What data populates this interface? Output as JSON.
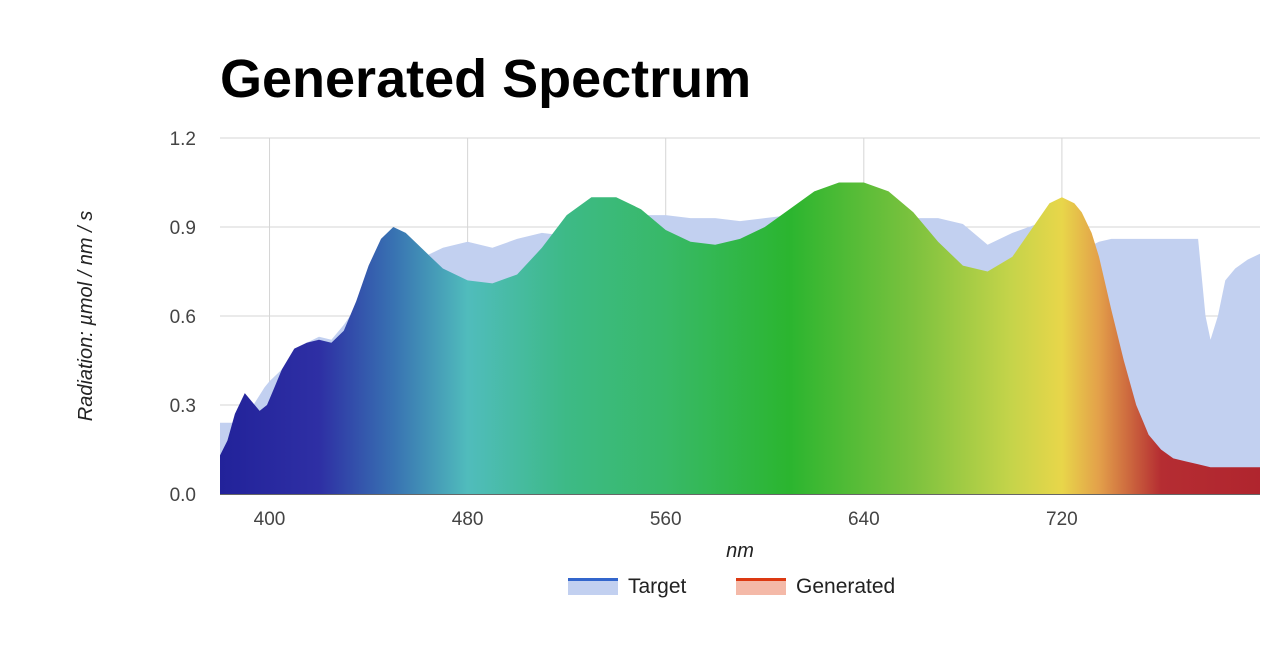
{
  "chart_data": {
    "type": "area",
    "title": "Generated Spectrum",
    "xlabel": "nm",
    "ylabel": "Radiation: µmol / nm / s",
    "xlim": [
      380,
      800
    ],
    "ylim": [
      0,
      1.2
    ],
    "x_ticks": [
      "400",
      "480",
      "560",
      "640",
      "720"
    ],
    "x_tick_values": [
      400,
      480,
      560,
      640,
      720
    ],
    "y_ticks": [
      "0.0",
      "0.3",
      "0.6",
      "0.9",
      "1.2"
    ],
    "y_tick_values": [
      0,
      0.3,
      0.6,
      0.9,
      1.2
    ],
    "grid": true,
    "legend_position": "bottom",
    "series": [
      {
        "name": "Target",
        "color": "#3366cc",
        "fill_color": "#c2d0f0",
        "x": [
          380,
          385,
          388,
          390,
          392,
          395,
          398,
          400,
          405,
          410,
          415,
          420,
          425,
          430,
          435,
          440,
          445,
          450,
          455,
          460,
          470,
          480,
          490,
          500,
          510,
          520,
          530,
          540,
          550,
          560,
          570,
          580,
          590,
          600,
          610,
          620,
          630,
          640,
          650,
          660,
          670,
          680,
          690,
          700,
          710,
          715,
          720,
          725,
          730,
          735,
          740,
          745,
          750,
          760,
          770,
          775,
          778,
          780,
          783,
          786,
          790,
          795,
          800
        ],
        "values": [
          0.24,
          0.24,
          0.24,
          0.25,
          0.28,
          0.32,
          0.36,
          0.38,
          0.42,
          0.48,
          0.51,
          0.53,
          0.52,
          0.57,
          0.63,
          0.7,
          0.74,
          0.76,
          0.78,
          0.79,
          0.83,
          0.85,
          0.83,
          0.86,
          0.88,
          0.87,
          0.91,
          0.93,
          0.94,
          0.94,
          0.93,
          0.93,
          0.92,
          0.93,
          0.94,
          0.93,
          0.93,
          0.93,
          0.92,
          0.93,
          0.93,
          0.91,
          0.84,
          0.88,
          0.91,
          0.82,
          0.77,
          0.79,
          0.83,
          0.85,
          0.86,
          0.86,
          0.86,
          0.86,
          0.86,
          0.86,
          0.6,
          0.52,
          0.6,
          0.72,
          0.76,
          0.79,
          0.81
        ]
      },
      {
        "name": "Generated",
        "color": "#dc3912",
        "fill_color": "#f4b9a8",
        "x": [
          380,
          383,
          386,
          390,
          393,
          396,
          399,
          402,
          405,
          410,
          415,
          420,
          425,
          430,
          435,
          440,
          445,
          450,
          455,
          460,
          465,
          470,
          480,
          490,
          500,
          510,
          520,
          530,
          540,
          550,
          560,
          570,
          580,
          590,
          600,
          610,
          620,
          630,
          640,
          650,
          660,
          670,
          680,
          690,
          700,
          710,
          715,
          720,
          725,
          728,
          732,
          735,
          740,
          745,
          750,
          755,
          760,
          765,
          770,
          775,
          780,
          785,
          790,
          795,
          800
        ],
        "values": [
          0.13,
          0.18,
          0.27,
          0.34,
          0.31,
          0.28,
          0.3,
          0.36,
          0.42,
          0.49,
          0.51,
          0.52,
          0.51,
          0.55,
          0.65,
          0.77,
          0.86,
          0.9,
          0.88,
          0.84,
          0.8,
          0.76,
          0.72,
          0.71,
          0.74,
          0.83,
          0.94,
          1.0,
          1.0,
          0.96,
          0.89,
          0.85,
          0.84,
          0.86,
          0.9,
          0.96,
          1.02,
          1.05,
          1.05,
          1.02,
          0.95,
          0.85,
          0.77,
          0.75,
          0.8,
          0.92,
          0.98,
          1.0,
          0.98,
          0.95,
          0.88,
          0.8,
          0.62,
          0.45,
          0.3,
          0.2,
          0.15,
          0.12,
          0.11,
          0.1,
          0.09,
          0.09,
          0.09,
          0.09,
          0.09
        ]
      }
    ],
    "spectrum_colors": [
      {
        "nm": 380,
        "color": "#22229a"
      },
      {
        "nm": 420,
        "color": "#2e2fa4"
      },
      {
        "nm": 450,
        "color": "#3872b2"
      },
      {
        "nm": 480,
        "color": "#50bcbc"
      },
      {
        "nm": 520,
        "color": "#3dba86"
      },
      {
        "nm": 560,
        "color": "#38b968"
      },
      {
        "nm": 610,
        "color": "#2bb52f"
      },
      {
        "nm": 660,
        "color": "#7cc23e"
      },
      {
        "nm": 700,
        "color": "#c6d44a"
      },
      {
        "nm": 720,
        "color": "#e8d64a"
      },
      {
        "nm": 735,
        "color": "#e3a04a"
      },
      {
        "nm": 760,
        "color": "#b52d32"
      },
      {
        "nm": 800,
        "color": "#b0252e"
      }
    ]
  }
}
